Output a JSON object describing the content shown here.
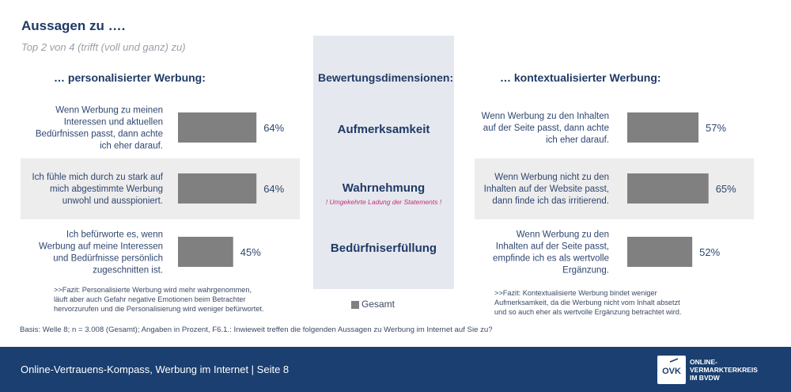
{
  "title": "Aussagen zu ….",
  "subtitle": "Top 2 von 4 (trifft (voll und ganz) zu)",
  "headers": {
    "left": "… personalisierter Werbung:",
    "center": "Bewertungsdimensionen:",
    "right": "… kontextualisierter Werbung:"
  },
  "dimensions": [
    "Aufmerksamkeit",
    "Wahrnehmung",
    "Bedürfniserfüllung"
  ],
  "wahrnehmung_note": "! Umgekehrte Ladung der Statements !",
  "legend": "Gesamt",
  "chart_data": [
    {
      "type": "bar",
      "orientation": "horizontal",
      "categories": [
        "Wenn Werbung zu meinen Interessen und aktuellen Bedürfnissen passt, dann achte ich eher darauf.",
        "Ich fühle mich durch zu stark auf mich abgestimmte Werbung unwohl und ausspioniert.",
        "Ich befürworte es, wenn Werbung auf meine Interessen und Bedürfnisse persönlich zugeschnitten ist."
      ],
      "category_lines": [
        [
          "Wenn Werbung zu meinen",
          "Interessen und aktuellen",
          "Bedürfnissen passt, dann achte",
          "ich eher darauf."
        ],
        [
          "Ich fühle mich durch zu stark auf",
          "mich abgestimmte Werbung",
          "unwohl und ausspioniert."
        ],
        [
          "Ich befürworte es, wenn",
          "Werbung auf meine Interessen",
          "und Bedürfnisse persönlich",
          "zugeschnitten ist."
        ]
      ],
      "series": [
        {
          "name": "Gesamt",
          "values": [
            64,
            64,
            45
          ],
          "color": "#808080"
        }
      ],
      "value_labels": [
        "64%",
        "64%",
        "45%"
      ],
      "xlim": [
        0,
        100
      ]
    },
    {
      "type": "bar",
      "orientation": "horizontal",
      "categories": [
        "Wenn Werbung zu den Inhalten auf der Seite passt, dann achte ich eher darauf.",
        "Wenn Werbung nicht zu den Inhalten auf der Website passt, dann finde ich das irritierend.",
        "Wenn Werbung zu den Inhalten auf der Seite passt, empfinde ich es als wertvolle Ergänzung."
      ],
      "category_lines": [
        [
          "Wenn Werbung zu den Inhalten",
          "auf der Seite passt, dann achte",
          "ich eher darauf."
        ],
        [
          "Wenn Werbung nicht zu den",
          "Inhalten auf der Website passt,",
          "dann finde ich das irritierend."
        ],
        [
          "Wenn Werbung zu den",
          "Inhalten auf der Seite passt,",
          "empfinde ich es als wertvolle",
          "Ergänzung."
        ]
      ],
      "series": [
        {
          "name": "Gesamt",
          "values": [
            57,
            65,
            52
          ],
          "color": "#808080"
        }
      ],
      "value_labels": [
        "57%",
        "65%",
        "52%"
      ],
      "xlim": [
        0,
        100
      ]
    }
  ],
  "fazit_left": [
    ">>Fazit: Personalisierte Werbung wird mehr wahrgenommen,",
    "läuft aber auch Gefahr negative Emotionen beim Betrachter",
    "hervorzurufen und die Personalisierung wird weniger befürwortet."
  ],
  "fazit_right": [
    ">>Fazit: Kontextualisierte Werbung bindet weniger",
    "Aufmerksamkeit, da die Werbung nicht vom Inhalt absetzt",
    "und so auch eher als wertvolle Ergänzung betrachtet wird."
  ],
  "basis": "Basis: Welle 8; n = 3.008 (Gesamt); Angaben in Prozent, F6.1.: Inwieweit treffen die folgenden Aussagen zu Werbung im Internet auf Sie zu?",
  "footer": {
    "text": "Online-Vertrauens-Kompass, Werbung im Internet |  Seite 8",
    "logo_mark": "OVK",
    "logo_lines": [
      "ONLINE-",
      "VERMARKTERKREIS",
      "IM BVDW"
    ]
  }
}
